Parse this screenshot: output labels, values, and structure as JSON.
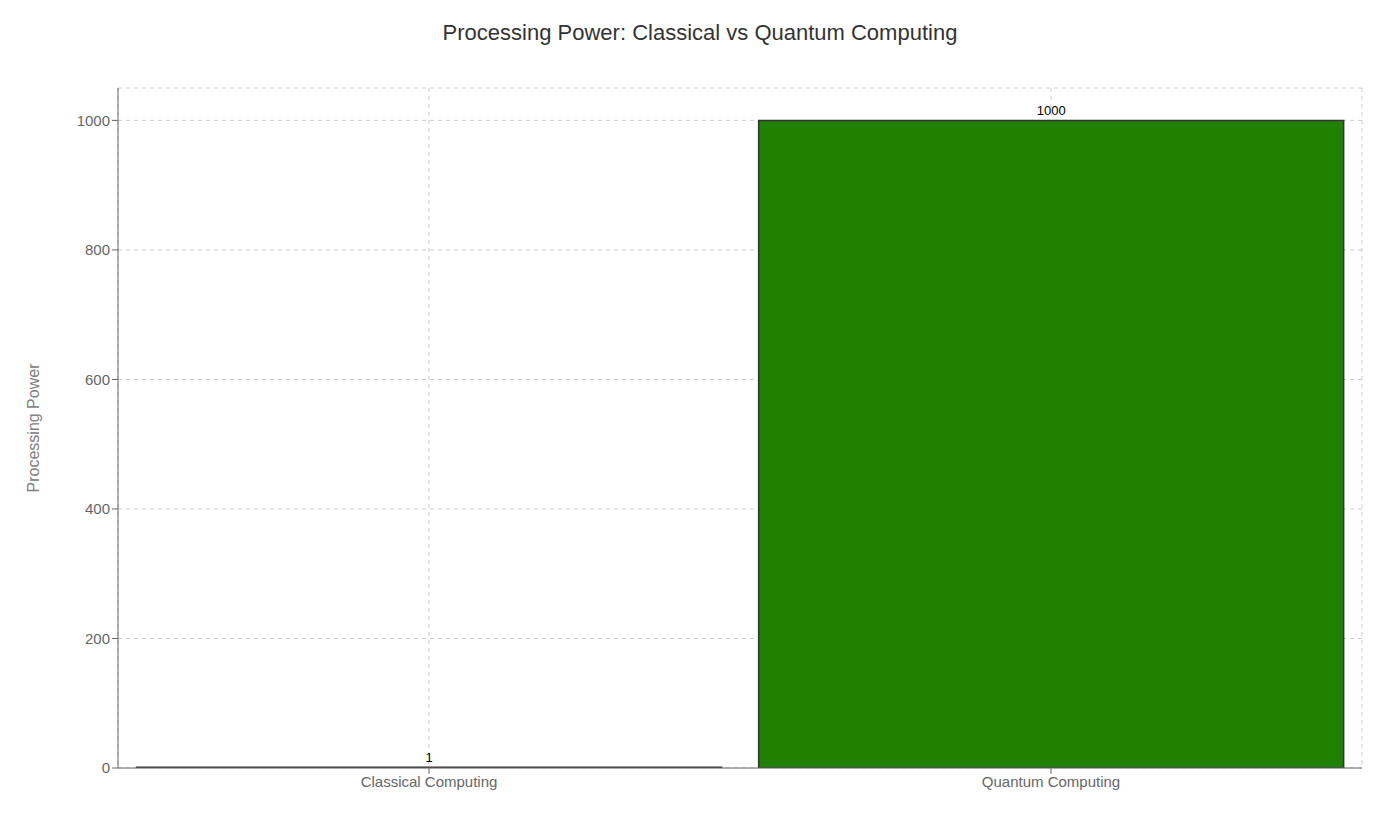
{
  "chart_data": {
    "type": "bar",
    "title": "Processing Power: Classical vs Quantum Computing",
    "ylabel": "Processing Power",
    "categories": [
      "Classical Computing",
      "Quantum Computing"
    ],
    "values": [
      1,
      1000
    ],
    "colors": [
      "#ffffff",
      "#208000"
    ],
    "ylim": [
      0,
      1050
    ],
    "yticks": [
      0,
      200,
      400,
      600,
      800,
      1000
    ],
    "grid": true,
    "data_labels": true
  }
}
